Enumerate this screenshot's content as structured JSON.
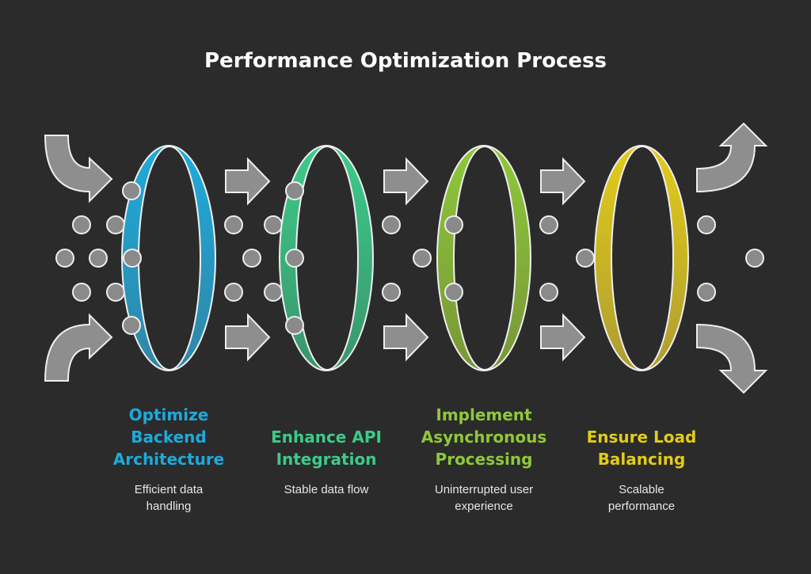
{
  "title": "Performance Optimization Process",
  "stages": [
    {
      "label_lines": [
        "Optimize",
        "Backend",
        "Architecture"
      ],
      "description_lines": [
        "Efficient data",
        "handling"
      ],
      "color_top": "#1eaadb",
      "color_bottom": "#2f86a6"
    },
    {
      "label_lines": [
        "Enhance API",
        "Integration"
      ],
      "description_lines": [
        "Stable data flow"
      ],
      "color_top": "#3ccb8a",
      "color_bottom": "#3a946c"
    },
    {
      "label_lines": [
        "Implement",
        "Asynchronous",
        "Processing"
      ],
      "description_lines": [
        "Uninterrupted user",
        "experience"
      ],
      "color_top": "#8fc83a",
      "color_bottom": "#789638"
    },
    {
      "label_lines": [
        "Ensure Load",
        "Balancing"
      ],
      "description_lines": [
        "Scalable",
        "performance"
      ],
      "color_top": "#e2cc18",
      "color_bottom": "#ae9c32"
    }
  ],
  "colors": {
    "background": "#2b2b2b",
    "arrow": "#8e8e8e",
    "dot": "#8a8a8a",
    "outline": "#eeeeee"
  }
}
